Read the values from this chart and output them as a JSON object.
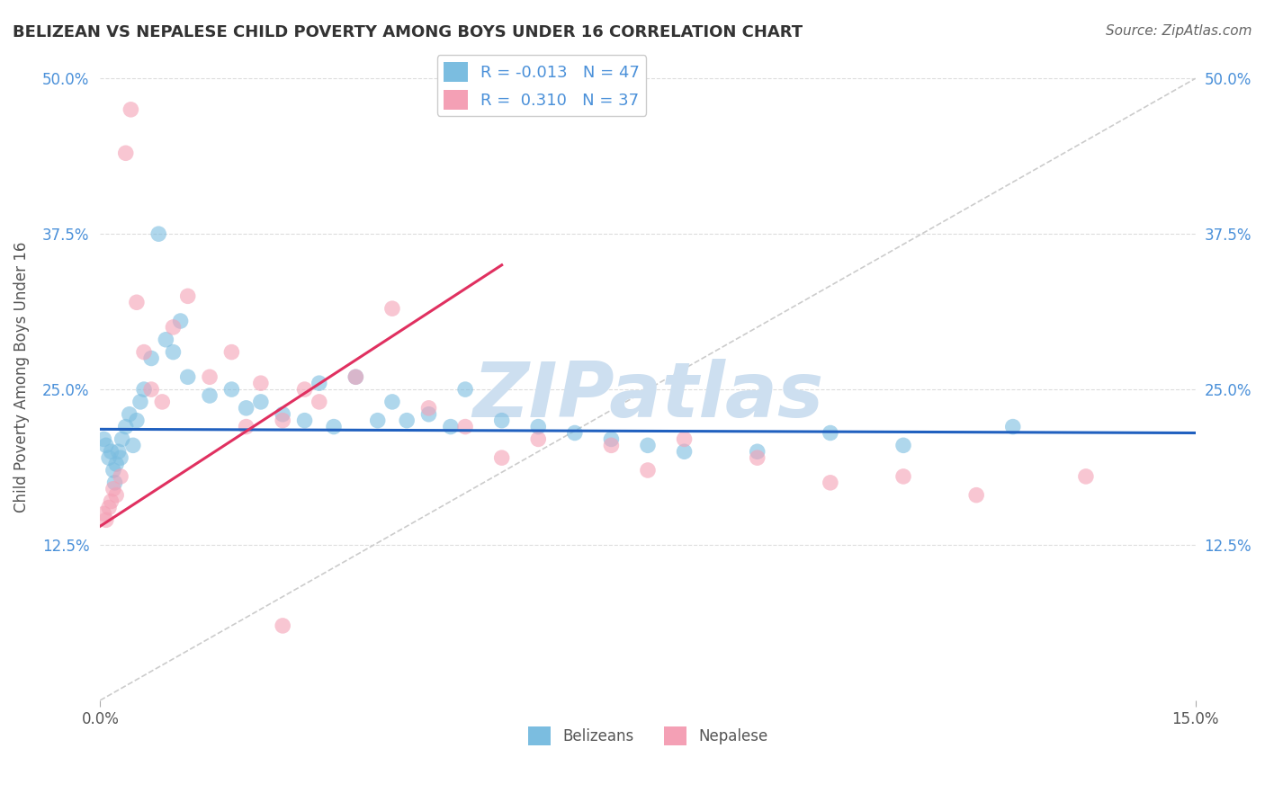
{
  "title": "BELIZEAN VS NEPALESE CHILD POVERTY AMONG BOYS UNDER 16 CORRELATION CHART",
  "source": "Source: ZipAtlas.com",
  "ylabel": "Child Poverty Among Boys Under 16",
  "xlim": [
    0.0,
    15.0
  ],
  "ylim": [
    0.0,
    52.0
  ],
  "legend_label1": "R = -0.013   N = 47",
  "legend_label2": "R =  0.310   N = 37",
  "belizean_color": "#7bbde0",
  "nepalese_color": "#f4a0b5",
  "trend_color_blue": "#2060bf",
  "trend_color_pink": "#e03060",
  "diagonal_color": "#cccccc",
  "watermark_color": "#cddff0",
  "background_color": "#ffffff",
  "belizean_R": -0.013,
  "nepalese_R": 0.31,
  "belizean_x": [
    0.05,
    0.08,
    0.12,
    0.15,
    0.18,
    0.2,
    0.22,
    0.25,
    0.28,
    0.3,
    0.35,
    0.4,
    0.45,
    0.5,
    0.55,
    0.6,
    0.7,
    0.8,
    0.9,
    1.0,
    1.1,
    1.2,
    1.5,
    1.8,
    2.0,
    2.2,
    2.5,
    2.8,
    3.0,
    3.2,
    3.5,
    3.8,
    4.0,
    4.2,
    4.5,
    4.8,
    5.0,
    5.5,
    6.0,
    6.5,
    7.0,
    7.5,
    8.0,
    9.0,
    10.0,
    11.0,
    12.5
  ],
  "belizean_y": [
    21.0,
    20.5,
    19.5,
    20.0,
    18.5,
    17.5,
    19.0,
    20.0,
    19.5,
    21.0,
    22.0,
    23.0,
    20.5,
    22.5,
    24.0,
    25.0,
    27.5,
    37.5,
    29.0,
    28.0,
    30.5,
    26.0,
    24.5,
    25.0,
    23.5,
    24.0,
    23.0,
    22.5,
    25.5,
    22.0,
    26.0,
    22.5,
    24.0,
    22.5,
    23.0,
    22.0,
    25.0,
    22.5,
    22.0,
    21.5,
    21.0,
    20.5,
    20.0,
    20.0,
    21.5,
    20.5,
    22.0
  ],
  "nepalese_x": [
    0.05,
    0.08,
    0.12,
    0.15,
    0.18,
    0.22,
    0.28,
    0.35,
    0.42,
    0.5,
    0.6,
    0.7,
    0.85,
    1.0,
    1.2,
    1.5,
    1.8,
    2.0,
    2.2,
    2.5,
    2.8,
    3.0,
    3.5,
    4.0,
    4.5,
    5.0,
    5.5,
    6.0,
    7.0,
    7.5,
    8.0,
    9.0,
    10.0,
    11.0,
    12.0,
    13.5,
    2.5
  ],
  "nepalese_y": [
    15.0,
    14.5,
    15.5,
    16.0,
    17.0,
    16.5,
    18.0,
    44.0,
    47.5,
    32.0,
    28.0,
    25.0,
    24.0,
    30.0,
    32.5,
    26.0,
    28.0,
    22.0,
    25.5,
    22.5,
    25.0,
    24.0,
    26.0,
    31.5,
    23.5,
    22.0,
    19.5,
    21.0,
    20.5,
    18.5,
    21.0,
    19.5,
    17.5,
    18.0,
    16.5,
    18.0,
    6.0
  ]
}
